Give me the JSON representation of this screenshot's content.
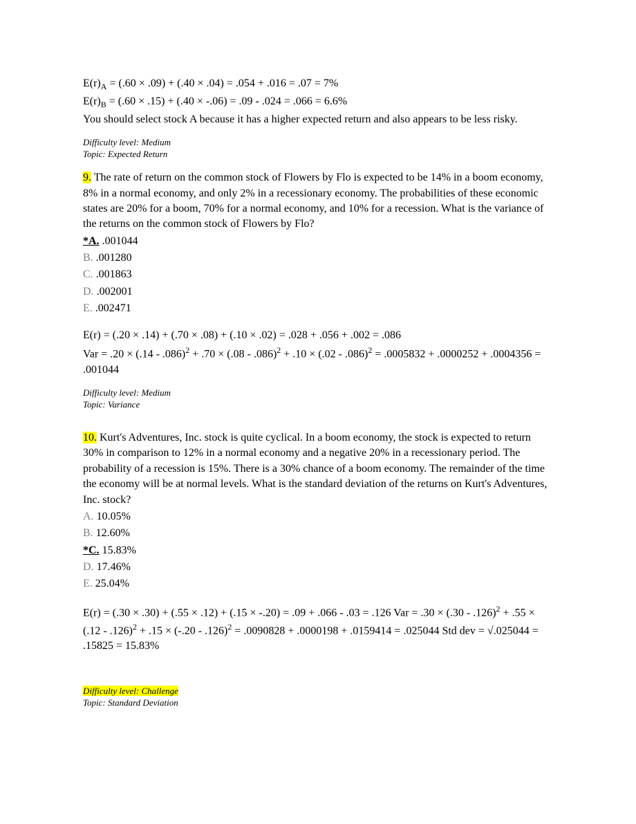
{
  "intro": {
    "line1_a": "E(r)",
    "line1_sub": "A",
    "line1_b": " = (.60 × .09) + (.40 × .04) = .054 + .016 = .07 = 7%",
    "line2_a": "E(r)",
    "line2_sub": "B",
    "line2_b": " = (.60 × .15) + (.40 × -.06) = .09 - .024 = .066 = 6.6%",
    "line3": "You should select stock A because it has a higher expected return and also appears to be less risky.",
    "difficulty": " Difficulty level: Medium",
    "topic": "Topic: Expected Return"
  },
  "q9": {
    "num": "9.",
    "text": " The rate of return on the common stock of Flowers by Flo is expected to be 14% in a boom economy, 8% in a normal economy, and only 2% in a recessionary economy. The probabilities of these economic states are 20% for a boom, 70% for a normal economy, and 10% for a recession. What is the variance of the returns on the common stock of Flowers by Flo?",
    "ansA_label": "*A.",
    "ansA_val": " .001044",
    "ansB_label": "B.",
    "ansB_val": " .001280",
    "ansC_label": "C.",
    "ansC_val": " .001863",
    "ansD_label": "D.",
    "ansD_val": " .002001",
    "ansE_label": "E.",
    "ansE_val": " .002471",
    "calc1": "E(r) = (.20 × .14) + (.70 × .08) + (.10 × .02) = .028 + .056 + .002 = .086",
    "calc2_a": "Var = .20 × (.14 - .086)",
    "calc2_b": " + .70 × (.08 - .086)",
    "calc2_c": " + .10 × (.02 - .086)",
    "calc2_d": " = .0005832 + .0000252 + .0004356 = .001044",
    "sup2": "2",
    "difficulty": " Difficulty level: Medium",
    "topic": "Topic: Variance"
  },
  "q10": {
    "num": "10.",
    "text": " Kurt's Adventures, Inc. stock is quite cyclical. In a boom economy, the stock is expected to return 30% in comparison to 12% in a normal economy and a negative 20% in a recessionary period. The probability of a recession is 15%. There is a 30% chance of a boom economy. The remainder of the time the economy will be at normal levels. What is the standard deviation of the returns on Kurt's Adventures, Inc. stock?",
    "ansA_label": "A.",
    "ansA_val": " 10.05%",
    "ansB_label": "B.",
    "ansB_val": " 12.60%",
    "ansC_label": "*C.",
    "ansC_val": " 15.83%",
    "ansD_label": "D.",
    "ansD_val": " 17.46%",
    "ansE_label": "E.",
    "ansE_val": " 25.04%",
    "calc_a": "E(r) = (.30 × .30) + (.55 × .12) + (.15 × -.20) = .09 + .066 - .03 = .126 Var = .30 × (.30 - .126)",
    "calc_b": " + .55 × (.12 - .126)",
    "calc_c": " + .15 × (-.20 - .126)",
    "calc_d": " = .0090828 + .0000198 + .0159414 = .025044 Std dev = √.025044 = .15825 = 15.83%",
    "sup2": "2",
    "difficulty": "Difficulty level: Challenge",
    "topic": "Topic: Standard Deviation"
  }
}
